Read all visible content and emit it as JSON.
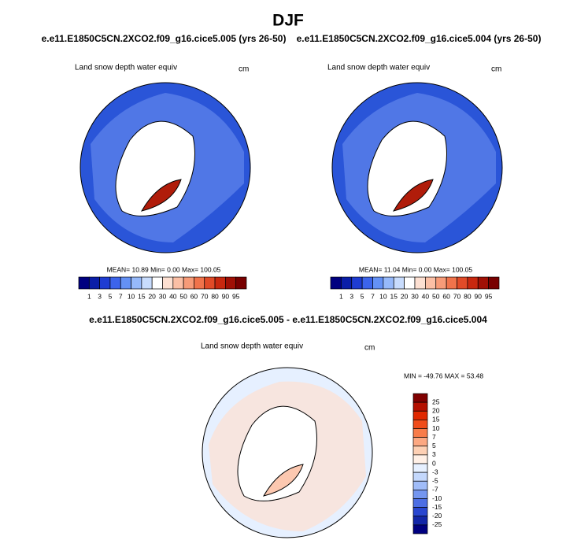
{
  "title": "DJF",
  "panels": [
    {
      "case": "e.e11.E1850C5CN.2XCO2.f09_g16.cice5.005 (yrs 26-50)",
      "variable": "Land snow depth water equiv",
      "units": "cm",
      "stats": "MEAN=  10.89  Min=   0.00  Max= 100.05"
    },
    {
      "case": "e.e11.E1850C5CN.2XCO2.f09_g16.cice5.004 (yrs 26-50)",
      "variable": "Land snow depth water equiv",
      "units": "cm",
      "stats": "MEAN=  11.04  Min=   0.00  Max= 100.05"
    }
  ],
  "colorbar": {
    "labels": [
      1,
      3,
      5,
      7,
      10,
      15,
      20,
      30,
      40,
      50,
      60,
      70,
      80,
      90,
      95
    ],
    "colors": [
      "#000080",
      "#0a1ea8",
      "#1e3cd2",
      "#3c64eb",
      "#6491f5",
      "#96b9fa",
      "#c8dcfd",
      "#ffffff",
      "#fde0d2",
      "#fbbfa5",
      "#f79b78",
      "#f0734b",
      "#e14b28",
      "#c8280f",
      "#a01005",
      "#780000"
    ]
  },
  "difference": {
    "case": "e.e11.E1850C5CN.2XCO2.f09_g16.cice5.005 - e.e11.E1850C5CN.2XCO2.f09_g16.cice5.004",
    "variable": "Land snow depth water equiv",
    "units": "cm",
    "stats": "MIN = -49.76 MAX =  53.48",
    "colorbar": {
      "labels": [
        25,
        20,
        15,
        10,
        7,
        5,
        3,
        0,
        -3,
        -5,
        -7,
        -10,
        -15,
        -20,
        -25
      ],
      "colors": [
        "#800000",
        "#b41000",
        "#e02800",
        "#f04c1a",
        "#f87c4a",
        "#fca882",
        "#fdd0b4",
        "#fff0e6",
        "#e6f0ff",
        "#c4d8fc",
        "#a0bcf8",
        "#7496f0",
        "#4c6ee4",
        "#2846d0",
        "#1226a8",
        "#000080"
      ]
    }
  }
}
